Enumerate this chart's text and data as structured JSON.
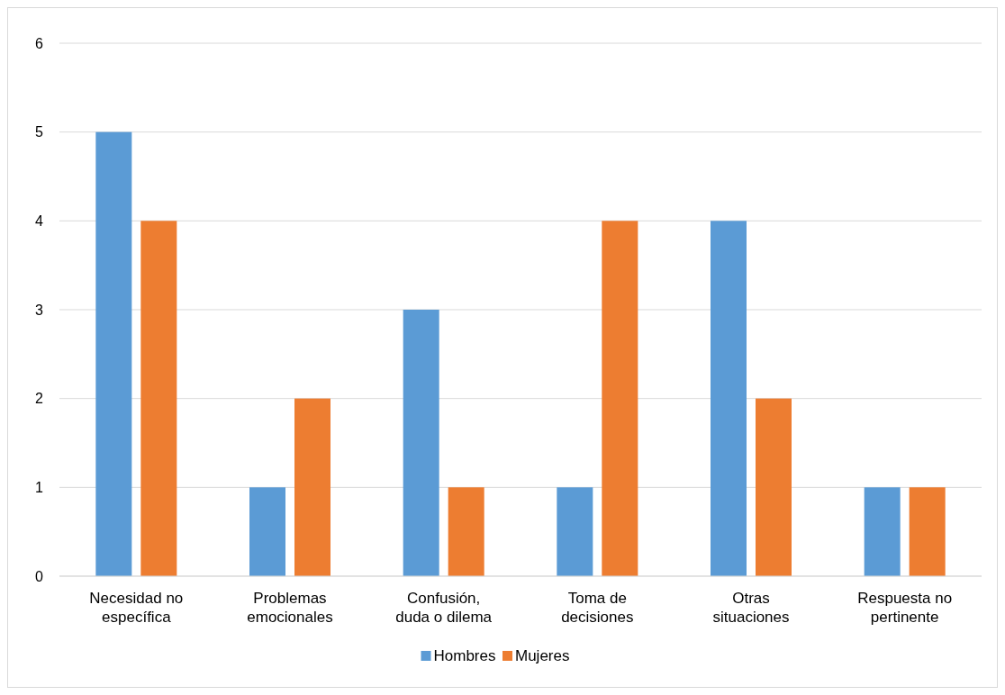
{
  "chart_data": {
    "type": "bar",
    "categories": [
      "Necesidad no específica",
      "Problemas emocionales",
      "Confusión, duda o dilema",
      "Toma de decisiones",
      "Otras situaciones",
      "Respuesta no pertinente"
    ],
    "series": [
      {
        "name": "Hombres",
        "color": "#5b9bd5",
        "values": [
          5,
          1,
          3,
          1,
          4,
          1
        ]
      },
      {
        "name": "Mujeres",
        "color": "#ed7d31",
        "values": [
          4,
          2,
          1,
          4,
          2,
          1
        ]
      }
    ],
    "ylim": [
      0,
      6
    ],
    "yticks": [
      0,
      1,
      2,
      3,
      4,
      5,
      6
    ],
    "grid": "y",
    "legend": "bottom"
  }
}
